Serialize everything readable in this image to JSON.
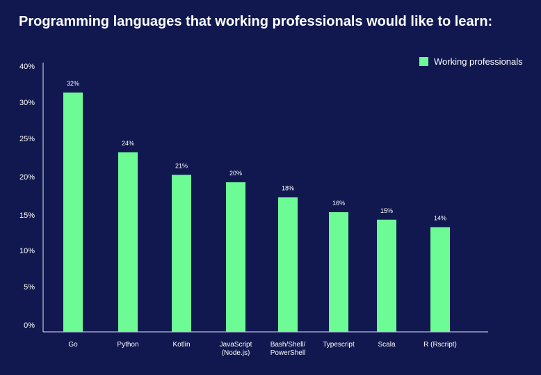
{
  "chart_data": {
    "type": "bar",
    "title": "Programming languages that working professionals would like to learn:",
    "categories": [
      "Go",
      "Python",
      "Kotlin",
      "JavaScript (Node.js)",
      "Bash/Shell/ PowerShell",
      "Typescript",
      "Scala",
      "R (Rscript)"
    ],
    "category_lines": [
      [
        "Go"
      ],
      [
        "Python"
      ],
      [
        "Kotlin"
      ],
      [
        "JavaScript",
        "(Node.js)"
      ],
      [
        "Bash/Shell/",
        "PowerShell"
      ],
      [
        "Typescript"
      ],
      [
        "Scala"
      ],
      [
        "R (Rscript)"
      ]
    ],
    "series": [
      {
        "name": "Working professionals",
        "values": [
          32,
          24,
          21,
          20,
          18,
          16,
          15,
          14
        ],
        "color": "#6dfb96"
      }
    ],
    "data_labels": [
      "32%",
      "24%",
      "21%",
      "20%",
      "18%",
      "16%",
      "15%",
      "14%"
    ],
    "yticks": [
      "40%",
      "30%",
      "25%",
      "20%",
      "15%",
      "10%",
      "5%",
      "0%"
    ],
    "ylim": [
      0,
      40
    ],
    "grid": false,
    "legend": "top-right",
    "xlabel": "",
    "ylabel": "",
    "background": "#10184f"
  }
}
